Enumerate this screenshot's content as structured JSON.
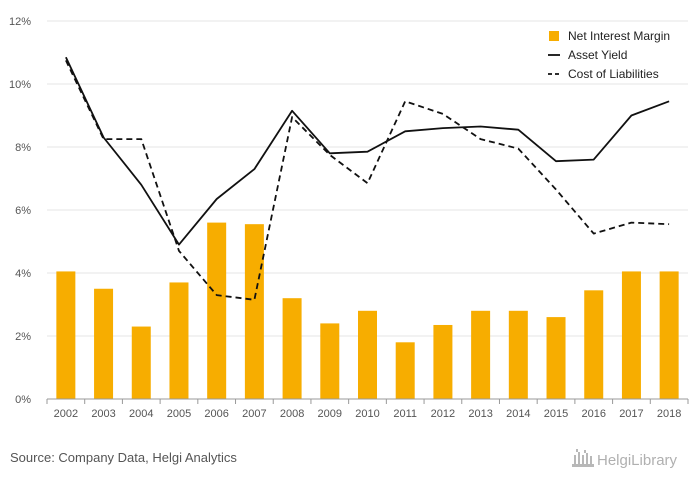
{
  "chart_data": {
    "type": "bar",
    "categories": [
      "2002",
      "2003",
      "2004",
      "2005",
      "2006",
      "2007",
      "2008",
      "2009",
      "2010",
      "2011",
      "2012",
      "2013",
      "2014",
      "2015",
      "2016",
      "2017",
      "2018"
    ],
    "series": [
      {
        "name": "Net Interest Margin",
        "kind": "bar",
        "color": "#f7ad00",
        "values": [
          4.05,
          3.5,
          2.3,
          3.7,
          5.6,
          5.55,
          3.2,
          2.4,
          2.8,
          1.8,
          2.35,
          2.8,
          2.8,
          2.6,
          3.45,
          4.05,
          4.05
        ]
      },
      {
        "name": "Asset Yield",
        "kind": "line",
        "style": "solid",
        "color": "#111111",
        "values": [
          10.85,
          8.3,
          6.8,
          4.9,
          6.35,
          7.3,
          9.15,
          7.8,
          7.85,
          8.5,
          8.6,
          8.65,
          8.55,
          7.55,
          7.6,
          9.0,
          9.45
        ]
      },
      {
        "name": "Cost of Liabilities",
        "kind": "line",
        "style": "dashed",
        "color": "#111111",
        "values": [
          10.75,
          8.25,
          8.25,
          4.7,
          3.3,
          3.15,
          8.95,
          7.75,
          6.85,
          9.45,
          9.05,
          8.25,
          7.95,
          6.65,
          5.25,
          5.6,
          5.55
        ]
      }
    ],
    "ylim": [
      0,
      12
    ],
    "yticks": [
      0,
      2,
      4,
      6,
      8,
      10,
      12
    ],
    "ytick_suffix": "%",
    "grid": true,
    "legend_position": "top-right",
    "title": "",
    "xlabel": "",
    "ylabel": ""
  },
  "source_text": "Source: Company Data, Helgi Analytics",
  "logo_text": "HelgiLibrary"
}
